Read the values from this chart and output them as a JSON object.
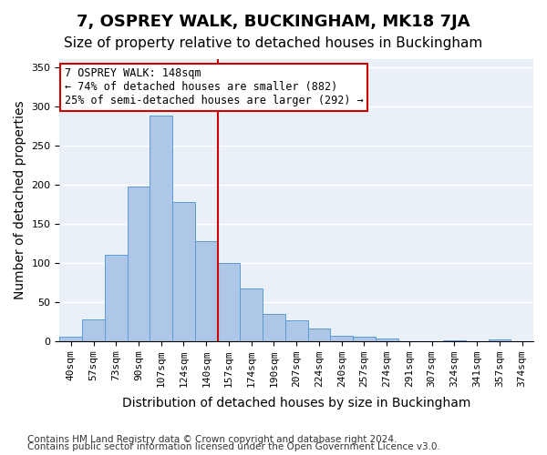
{
  "title": "7, OSPREY WALK, BUCKINGHAM, MK18 7JA",
  "subtitle": "Size of property relative to detached houses in Buckingham",
  "xlabel": "Distribution of detached houses by size in Buckingham",
  "ylabel": "Number of detached properties",
  "footnote1": "Contains HM Land Registry data © Crown copyright and database right 2024.",
  "footnote2": "Contains public sector information licensed under the Open Government Licence v3.0.",
  "annotation_line1": "7 OSPREY WALK: 148sqm",
  "annotation_line2": "← 74% of detached houses are smaller (882)",
  "annotation_line3": "25% of semi-detached houses are larger (292) →",
  "bar_color": "#aec6e8",
  "bar_edge_color": "#5b9bd5",
  "vline_color": "#cc0000",
  "vline_x": 7,
  "categories": [
    "40sqm",
    "57sqm",
    "73sqm",
    "90sqm",
    "107sqm",
    "124sqm",
    "140sqm",
    "157sqm",
    "174sqm",
    "190sqm",
    "207sqm",
    "224sqm",
    "240sqm",
    "257sqm",
    "274sqm",
    "291sqm",
    "307sqm",
    "324sqm",
    "341sqm",
    "357sqm",
    "374sqm"
  ],
  "values": [
    5,
    27,
    110,
    197,
    288,
    178,
    128,
    100,
    67,
    35,
    26,
    16,
    7,
    5,
    3,
    0,
    0,
    1,
    0,
    2,
    0
  ],
  "ylim": [
    0,
    360
  ],
  "yticks": [
    0,
    50,
    100,
    150,
    200,
    250,
    300,
    350
  ],
  "background_color": "#eaf0f8",
  "grid_color": "#ffffff",
  "title_fontsize": 13,
  "subtitle_fontsize": 11,
  "axis_label_fontsize": 10,
  "tick_fontsize": 8,
  "footnote_fontsize": 7.5
}
